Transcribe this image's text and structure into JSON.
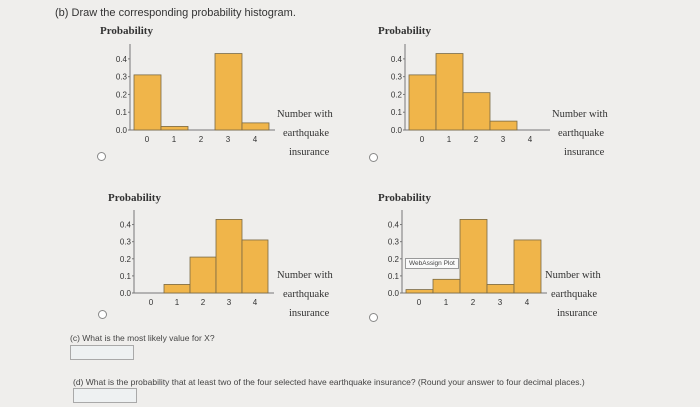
{
  "question_b": "(b) Draw the corresponding probability histogram.",
  "question_c": "(c) What is the most likely value for X?",
  "question_d": "(d) What is the probability that at least two of the four selected have earthquake insurance? (Round your answer to four decimal places.)",
  "tooltip": "WebAssign Plot",
  "options": [
    {
      "id": "a",
      "ylabel": "Probability",
      "xlabel": [
        "Number with",
        "earthquake",
        "insurance"
      ],
      "chart_data": {
        "type": "bar",
        "categories": [
          "0",
          "1",
          "2",
          "3",
          "4"
        ],
        "values": [
          0.31,
          0.02,
          0.0,
          0.43,
          0.04
        ],
        "ylabel": "Probability",
        "xlabel": "Number with earthquake insurance",
        "yticks": [
          "0.4",
          "0.3",
          "0.2",
          "0.1",
          "0.0"
        ],
        "ylim": [
          0,
          0.45
        ]
      }
    },
    {
      "id": "b",
      "ylabel": "Probability",
      "xlabel": [
        "Number with",
        "earthquake",
        "insurance"
      ],
      "chart_data": {
        "type": "bar",
        "categories": [
          "0",
          "1",
          "2",
          "3",
          "4"
        ],
        "values": [
          0.31,
          0.43,
          0.21,
          0.05,
          0.0
        ],
        "ylabel": "Probability",
        "xlabel": "Number with earthquake insurance",
        "yticks": [
          "0.4",
          "0.3",
          "0.2",
          "0.1",
          "0.0"
        ],
        "ylim": [
          0,
          0.45
        ]
      }
    },
    {
      "id": "c",
      "ylabel": "Probability",
      "xlabel": [
        "Number with",
        "earthquake",
        "insurance"
      ],
      "chart_data": {
        "type": "bar",
        "categories": [
          "0",
          "1",
          "2",
          "3",
          "4"
        ],
        "values": [
          0.0,
          0.05,
          0.21,
          0.43,
          0.31
        ],
        "ylabel": "Probability",
        "xlabel": "Number with earthquake insurance",
        "yticks": [
          "0.4",
          "0.3",
          "0.2",
          "0.1",
          "0.0"
        ],
        "ylim": [
          0,
          0.45
        ]
      }
    },
    {
      "id": "d",
      "ylabel": "Probability",
      "xlabel": [
        "Number with",
        "earthquake",
        "insurance"
      ],
      "chart_data": {
        "type": "bar",
        "categories": [
          "0",
          "1",
          "2",
          "3",
          "4"
        ],
        "values": [
          0.02,
          0.08,
          0.43,
          0.05,
          0.31
        ],
        "ylabel": "Probability",
        "xlabel": "Number with earthquake insurance",
        "yticks": [
          "0.4",
          "0.3",
          "0.2",
          "0.1",
          "0.0"
        ],
        "ylim": [
          0,
          0.45
        ]
      }
    }
  ],
  "colors": {
    "bar": "#f0b54a",
    "bar_edge": "#7a6a44",
    "page": "#efeeec"
  }
}
